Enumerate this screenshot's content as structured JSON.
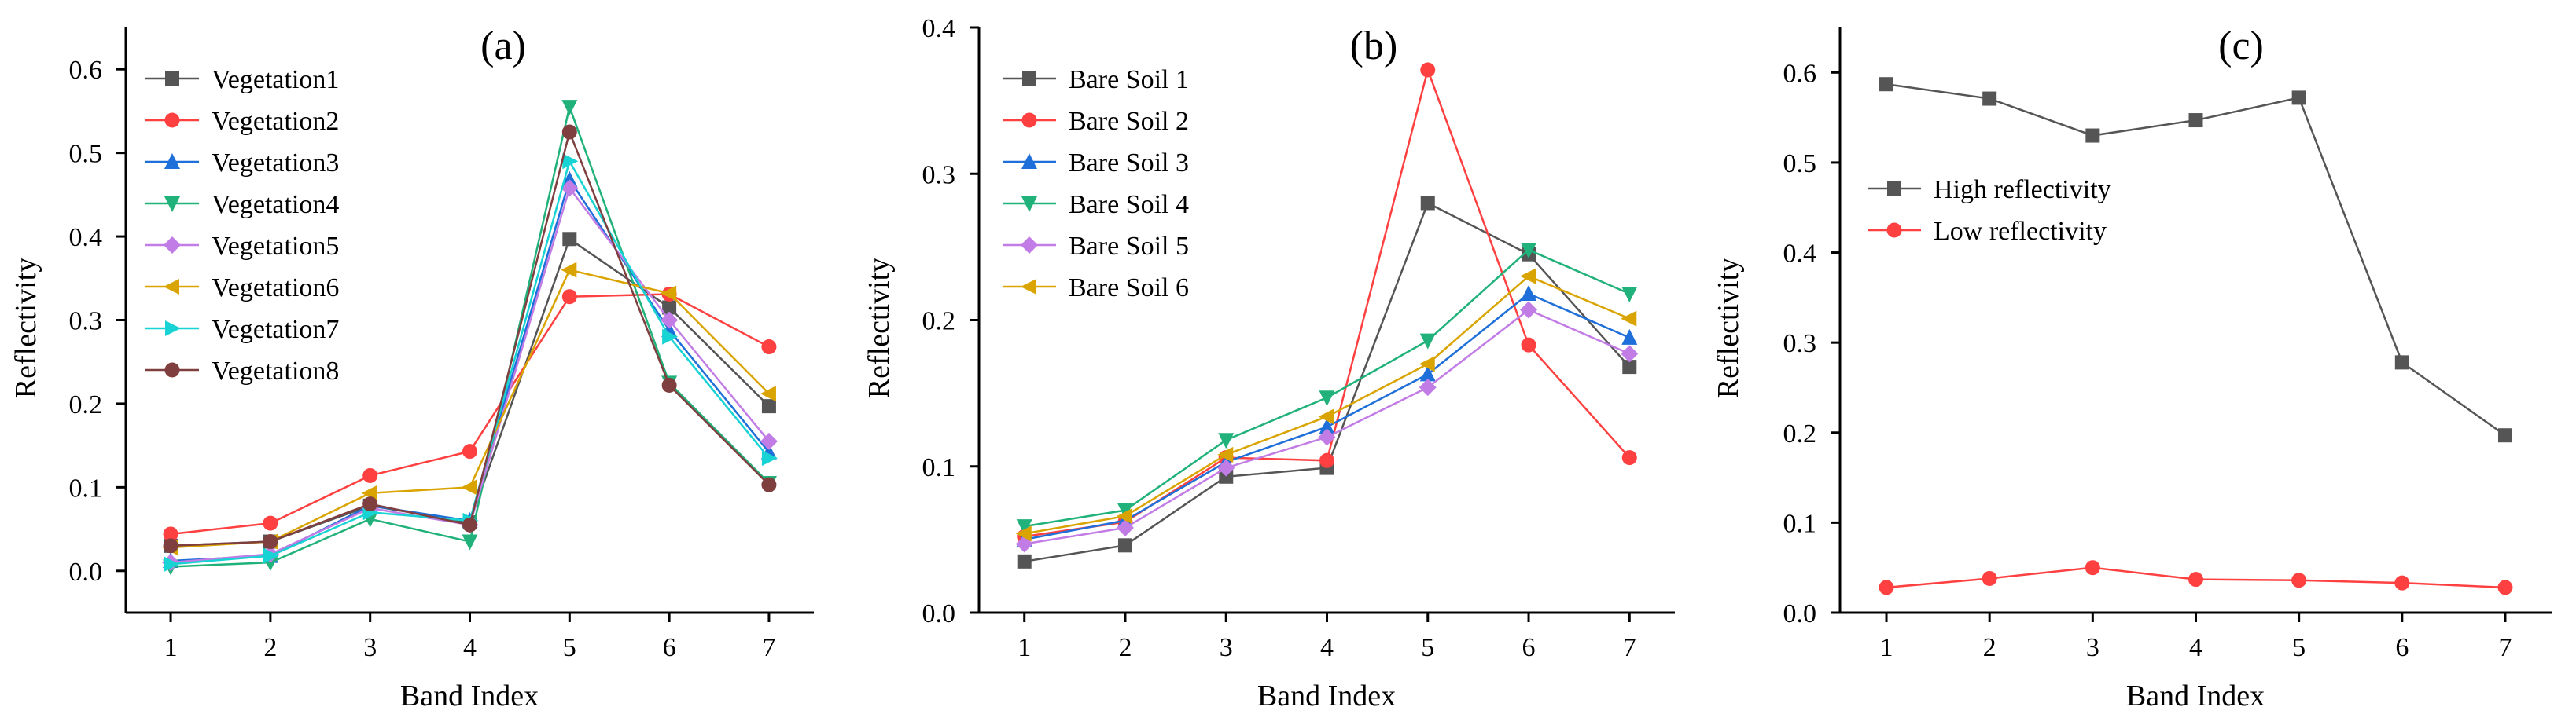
{
  "chart_data": [
    {
      "type": "line",
      "title": "(a)",
      "xlabel": "Band Index",
      "ylabel": "Reflectivity",
      "x": [
        1,
        2,
        3,
        4,
        5,
        6,
        7
      ],
      "xlim": [
        0.55,
        7.45
      ],
      "ylim": [
        -0.05,
        0.65
      ],
      "yticks": [
        0.0,
        0.1,
        0.2,
        0.3,
        0.4,
        0.5,
        0.6
      ],
      "ytick_labels": [
        "0.0",
        "0.1",
        "0.2",
        "0.3",
        "0.4",
        "0.5",
        "0.6"
      ],
      "legend_position": "top-left",
      "series": [
        {
          "name": "Vegetation1",
          "color": "#555555",
          "marker": "square",
          "values": [
            0.03,
            0.035,
            0.078,
            0.058,
            0.397,
            0.315,
            0.197
          ]
        },
        {
          "name": "Vegetation2",
          "color": "#ff4040",
          "marker": "circle",
          "values": [
            0.044,
            0.057,
            0.114,
            0.143,
            0.328,
            0.331,
            0.268
          ]
        },
        {
          "name": "Vegetation3",
          "color": "#1e6fd9",
          "marker": "triangle-up",
          "values": [
            0.012,
            0.018,
            0.078,
            0.06,
            0.468,
            0.288,
            0.142
          ]
        },
        {
          "name": "Vegetation4",
          "color": "#20b27a",
          "marker": "triangle-down",
          "values": [
            0.005,
            0.01,
            0.062,
            0.035,
            0.555,
            0.225,
            0.105
          ]
        },
        {
          "name": "Vegetation5",
          "color": "#c27ce6",
          "marker": "diamond",
          "values": [
            0.01,
            0.02,
            0.075,
            0.055,
            0.458,
            0.3,
            0.155
          ]
        },
        {
          "name": "Vegetation6",
          "color": "#d9a400",
          "marker": "triangle-left",
          "values": [
            0.028,
            0.035,
            0.093,
            0.1,
            0.36,
            0.332,
            0.212
          ]
        },
        {
          "name": "Vegetation7",
          "color": "#17d3d3",
          "marker": "triangle-right",
          "values": [
            0.008,
            0.018,
            0.07,
            0.06,
            0.49,
            0.28,
            0.135
          ]
        },
        {
          "name": "Vegetation8",
          "color": "#7f3f3f",
          "marker": "circle",
          "values": [
            0.03,
            0.035,
            0.08,
            0.055,
            0.525,
            0.222,
            0.103
          ]
        }
      ]
    },
    {
      "type": "line",
      "title": "(b)",
      "xlabel": "Band Index",
      "ylabel": "Reflectivity",
      "x": [
        1,
        2,
        3,
        4,
        5,
        6,
        7
      ],
      "xlim": [
        0.55,
        7.45
      ],
      "ylim": [
        0.0,
        0.4
      ],
      "yticks": [
        0.0,
        0.1,
        0.2,
        0.3,
        0.4
      ],
      "ytick_labels": [
        "0.0",
        "0.1",
        "0.2",
        "0.3",
        "0.4"
      ],
      "legend_position": "top-left",
      "series": [
        {
          "name": "Bare Soil 1",
          "color": "#555555",
          "marker": "square",
          "values": [
            0.035,
            0.046,
            0.093,
            0.099,
            0.28,
            0.245,
            0.168
          ]
        },
        {
          "name": "Bare Soil 2",
          "color": "#ff4040",
          "marker": "circle",
          "values": [
            0.052,
            0.062,
            0.106,
            0.104,
            0.371,
            0.183,
            0.106
          ]
        },
        {
          "name": "Bare Soil 3",
          "color": "#1e6fd9",
          "marker": "triangle-up",
          "values": [
            0.05,
            0.063,
            0.103,
            0.127,
            0.163,
            0.218,
            0.188
          ]
        },
        {
          "name": "Bare Soil 4",
          "color": "#20b27a",
          "marker": "triangle-down",
          "values": [
            0.059,
            0.07,
            0.118,
            0.147,
            0.186,
            0.248,
            0.218
          ]
        },
        {
          "name": "Bare Soil 5",
          "color": "#c27ce6",
          "marker": "diamond",
          "values": [
            0.047,
            0.058,
            0.099,
            0.12,
            0.154,
            0.207,
            0.177
          ]
        },
        {
          "name": "Bare Soil 6",
          "color": "#d9a400",
          "marker": "triangle-left",
          "values": [
            0.054,
            0.066,
            0.108,
            0.134,
            0.17,
            0.23,
            0.201
          ]
        }
      ]
    },
    {
      "type": "line",
      "title": "(c)",
      "xlabel": "Band Index",
      "ylabel": "Reflectivity",
      "x": [
        1,
        2,
        3,
        4,
        5,
        6,
        7
      ],
      "xlim": [
        0.55,
        7.45
      ],
      "ylim": [
        0.0,
        0.65
      ],
      "yticks": [
        0.0,
        0.1,
        0.2,
        0.3,
        0.4,
        0.5,
        0.6
      ],
      "ytick_labels": [
        "0.0",
        "0.1",
        "0.2",
        "0.3",
        "0.4",
        "0.5",
        "0.6"
      ],
      "legend_position": "upper-left",
      "series": [
        {
          "name": "High reflectivity",
          "color": "#555555",
          "marker": "square",
          "values": [
            0.587,
            0.571,
            0.53,
            0.547,
            0.572,
            0.278,
            0.197
          ]
        },
        {
          "name": "Low reflectivity",
          "color": "#ff4040",
          "marker": "circle",
          "values": [
            0.028,
            0.038,
            0.05,
            0.037,
            0.036,
            0.033,
            0.028
          ]
        }
      ]
    }
  ]
}
